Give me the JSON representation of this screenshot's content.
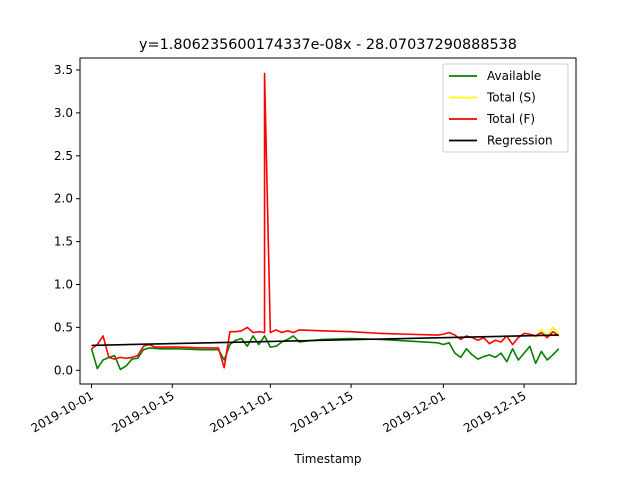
{
  "chart_data": {
    "type": "line",
    "title": "y=1.806235600174337e-08x - 28.07037290888538",
    "xlabel": "Timestamp",
    "ylabel": "",
    "x_type": "date",
    "xlim": [
      "2019-09-29",
      "2019-12-24"
    ],
    "ylim": [
      -0.16,
      3.64
    ],
    "xticks": [
      "2019-10-01",
      "2019-10-15",
      "2019-11-01",
      "2019-11-15",
      "2019-12-01",
      "2019-12-15"
    ],
    "yticks": [
      0.0,
      0.5,
      1.0,
      1.5,
      2.0,
      2.5,
      3.0,
      3.5
    ],
    "ytick_labels": [
      "0.0",
      "0.5",
      "1.0",
      "1.5",
      "2.0",
      "2.5",
      "3.0",
      "3.5"
    ],
    "grid": false,
    "legend_position": "top-right",
    "series": [
      {
        "name": "Available",
        "color": "#008000",
        "points": [
          [
            "2019-10-01",
            0.25
          ],
          [
            "2019-10-02",
            0.02
          ],
          [
            "2019-10-03",
            0.12
          ],
          [
            "2019-10-04",
            0.15
          ],
          [
            "2019-10-05",
            0.17
          ],
          [
            "2019-10-06",
            0.01
          ],
          [
            "2019-10-07",
            0.05
          ],
          [
            "2019-10-08",
            0.13
          ],
          [
            "2019-10-09",
            0.14
          ],
          [
            "2019-10-10",
            0.24
          ],
          [
            "2019-10-11",
            0.26
          ],
          [
            "2019-10-13",
            0.25
          ],
          [
            "2019-10-16",
            0.25
          ],
          [
            "2019-10-20",
            0.24
          ],
          [
            "2019-10-23",
            0.24
          ],
          [
            "2019-10-24",
            0.12
          ],
          [
            "2019-10-25",
            0.3
          ],
          [
            "2019-10-26",
            0.35
          ],
          [
            "2019-10-27",
            0.37
          ],
          [
            "2019-10-28",
            0.28
          ],
          [
            "2019-10-29",
            0.4
          ],
          [
            "2019-10-30",
            0.3
          ],
          [
            "2019-10-31",
            0.4
          ],
          [
            "2019-11-01",
            0.27
          ],
          [
            "2019-11-02",
            0.28
          ],
          [
            "2019-11-03",
            0.33
          ],
          [
            "2019-11-04",
            0.36
          ],
          [
            "2019-11-05",
            0.4
          ],
          [
            "2019-11-06",
            0.33
          ],
          [
            "2019-11-10",
            0.36
          ],
          [
            "2019-11-15",
            0.37
          ],
          [
            "2019-11-20",
            0.36
          ],
          [
            "2019-11-25",
            0.34
          ],
          [
            "2019-11-30",
            0.32
          ],
          [
            "2019-12-01",
            0.3
          ],
          [
            "2019-12-02",
            0.32
          ],
          [
            "2019-12-03",
            0.2
          ],
          [
            "2019-12-04",
            0.15
          ],
          [
            "2019-12-05",
            0.25
          ],
          [
            "2019-12-06",
            0.18
          ],
          [
            "2019-12-07",
            0.13
          ],
          [
            "2019-12-08",
            0.16
          ],
          [
            "2019-12-09",
            0.18
          ],
          [
            "2019-12-10",
            0.15
          ],
          [
            "2019-12-11",
            0.2
          ],
          [
            "2019-12-12",
            0.1
          ],
          [
            "2019-12-13",
            0.25
          ],
          [
            "2019-12-14",
            0.12
          ],
          [
            "2019-12-15",
            0.2
          ],
          [
            "2019-12-16",
            0.28
          ],
          [
            "2019-12-17",
            0.08
          ],
          [
            "2019-12-18",
            0.22
          ],
          [
            "2019-12-19",
            0.12
          ],
          [
            "2019-12-20",
            0.18
          ],
          [
            "2019-12-21",
            0.25
          ]
        ]
      },
      {
        "name": "Total (S)",
        "color": "#ffff00",
        "points": [
          [
            "2019-12-17",
            0.38
          ],
          [
            "2019-12-18",
            0.48
          ],
          [
            "2019-12-19",
            0.4
          ],
          [
            "2019-12-20",
            0.5
          ],
          [
            "2019-12-21",
            0.42
          ]
        ]
      },
      {
        "name": "Total (F)",
        "color": "#ff0000",
        "points": [
          [
            "2019-10-01",
            0.25
          ],
          [
            "2019-10-02",
            0.3
          ],
          [
            "2019-10-03",
            0.4
          ],
          [
            "2019-10-04",
            0.15
          ],
          [
            "2019-10-05",
            0.13
          ],
          [
            "2019-10-06",
            0.15
          ],
          [
            "2019-10-07",
            0.14
          ],
          [
            "2019-10-08",
            0.15
          ],
          [
            "2019-10-09",
            0.17
          ],
          [
            "2019-10-10",
            0.28
          ],
          [
            "2019-10-11",
            0.3
          ],
          [
            "2019-10-12",
            0.27
          ],
          [
            "2019-10-16",
            0.27
          ],
          [
            "2019-10-20",
            0.26
          ],
          [
            "2019-10-23",
            0.26
          ],
          [
            "2019-10-24",
            0.03
          ],
          [
            "2019-10-25",
            0.45
          ],
          [
            "2019-10-26",
            0.45
          ],
          [
            "2019-10-27",
            0.46
          ],
          [
            "2019-10-28",
            0.5
          ],
          [
            "2019-10-29",
            0.44
          ],
          [
            "2019-10-30",
            0.45
          ],
          [
            "2019-10-31",
            0.44
          ],
          [
            "2019-10-31",
            3.46
          ],
          [
            "2019-11-01",
            0.44
          ],
          [
            "2019-11-02",
            0.47
          ],
          [
            "2019-11-03",
            0.44
          ],
          [
            "2019-11-04",
            0.46
          ],
          [
            "2019-11-05",
            0.44
          ],
          [
            "2019-11-06",
            0.47
          ],
          [
            "2019-11-10",
            0.46
          ],
          [
            "2019-11-15",
            0.45
          ],
          [
            "2019-11-20",
            0.43
          ],
          [
            "2019-11-25",
            0.42
          ],
          [
            "2019-11-30",
            0.41
          ],
          [
            "2019-12-01",
            0.42
          ],
          [
            "2019-12-02",
            0.44
          ],
          [
            "2019-12-03",
            0.41
          ],
          [
            "2019-12-04",
            0.36
          ],
          [
            "2019-12-05",
            0.4
          ],
          [
            "2019-12-06",
            0.38
          ],
          [
            "2019-12-07",
            0.35
          ],
          [
            "2019-12-08",
            0.38
          ],
          [
            "2019-12-09",
            0.31
          ],
          [
            "2019-12-10",
            0.35
          ],
          [
            "2019-12-11",
            0.33
          ],
          [
            "2019-12-12",
            0.4
          ],
          [
            "2019-12-13",
            0.3
          ],
          [
            "2019-12-14",
            0.38
          ],
          [
            "2019-12-15",
            0.43
          ],
          [
            "2019-12-16",
            0.42
          ],
          [
            "2019-12-17",
            0.4
          ],
          [
            "2019-12-18",
            0.44
          ],
          [
            "2019-12-19",
            0.38
          ],
          [
            "2019-12-20",
            0.45
          ],
          [
            "2019-12-21",
            0.4
          ]
        ]
      },
      {
        "name": "Regression",
        "color": "#000000",
        "points": [
          [
            "2019-10-01",
            0.29
          ],
          [
            "2019-12-21",
            0.41
          ]
        ]
      }
    ]
  }
}
